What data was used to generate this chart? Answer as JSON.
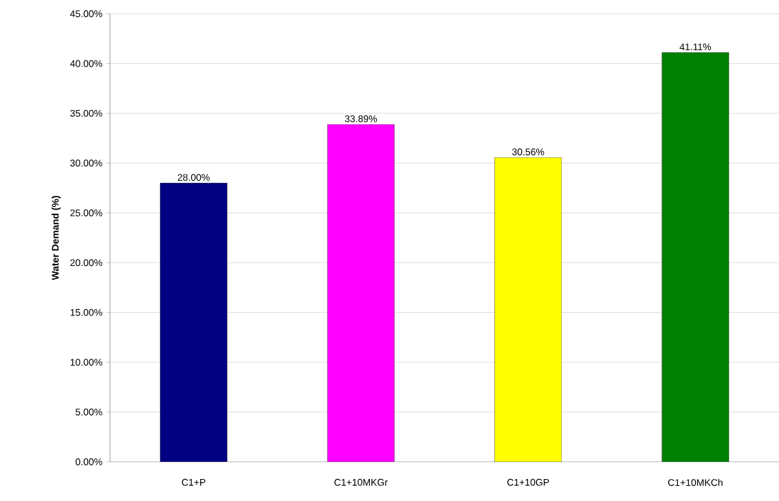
{
  "chart_data": {
    "type": "bar",
    "ylabel": "Water Demand (%)",
    "categories": [
      "C1+P",
      "C1+10MKGr",
      "C1+10GP",
      "C1+10MKCh"
    ],
    "values": [
      28.0,
      33.89,
      30.56,
      41.11
    ],
    "colors": [
      "#000080",
      "#ff00ff",
      "#ffff00",
      "#008000"
    ],
    "value_labels": [
      "28.00%",
      "33.89%",
      "30.56%",
      "41.11%"
    ],
    "ylim": [
      0,
      45
    ],
    "yticks": [
      {
        "value": 0,
        "label": "0.00%"
      },
      {
        "value": 5,
        "label": "5.00%"
      },
      {
        "value": 10,
        "label": "10.00%"
      },
      {
        "value": 15,
        "label": "15.00%"
      },
      {
        "value": 20,
        "label": "20.00%"
      },
      {
        "value": 25,
        "label": "25.00%"
      },
      {
        "value": 30,
        "label": "30.00%"
      },
      {
        "value": 35,
        "label": "35.00%"
      },
      {
        "value": 40,
        "label": "40.00%"
      },
      {
        "value": 45,
        "label": "45.00%"
      }
    ],
    "grid": "y"
  }
}
